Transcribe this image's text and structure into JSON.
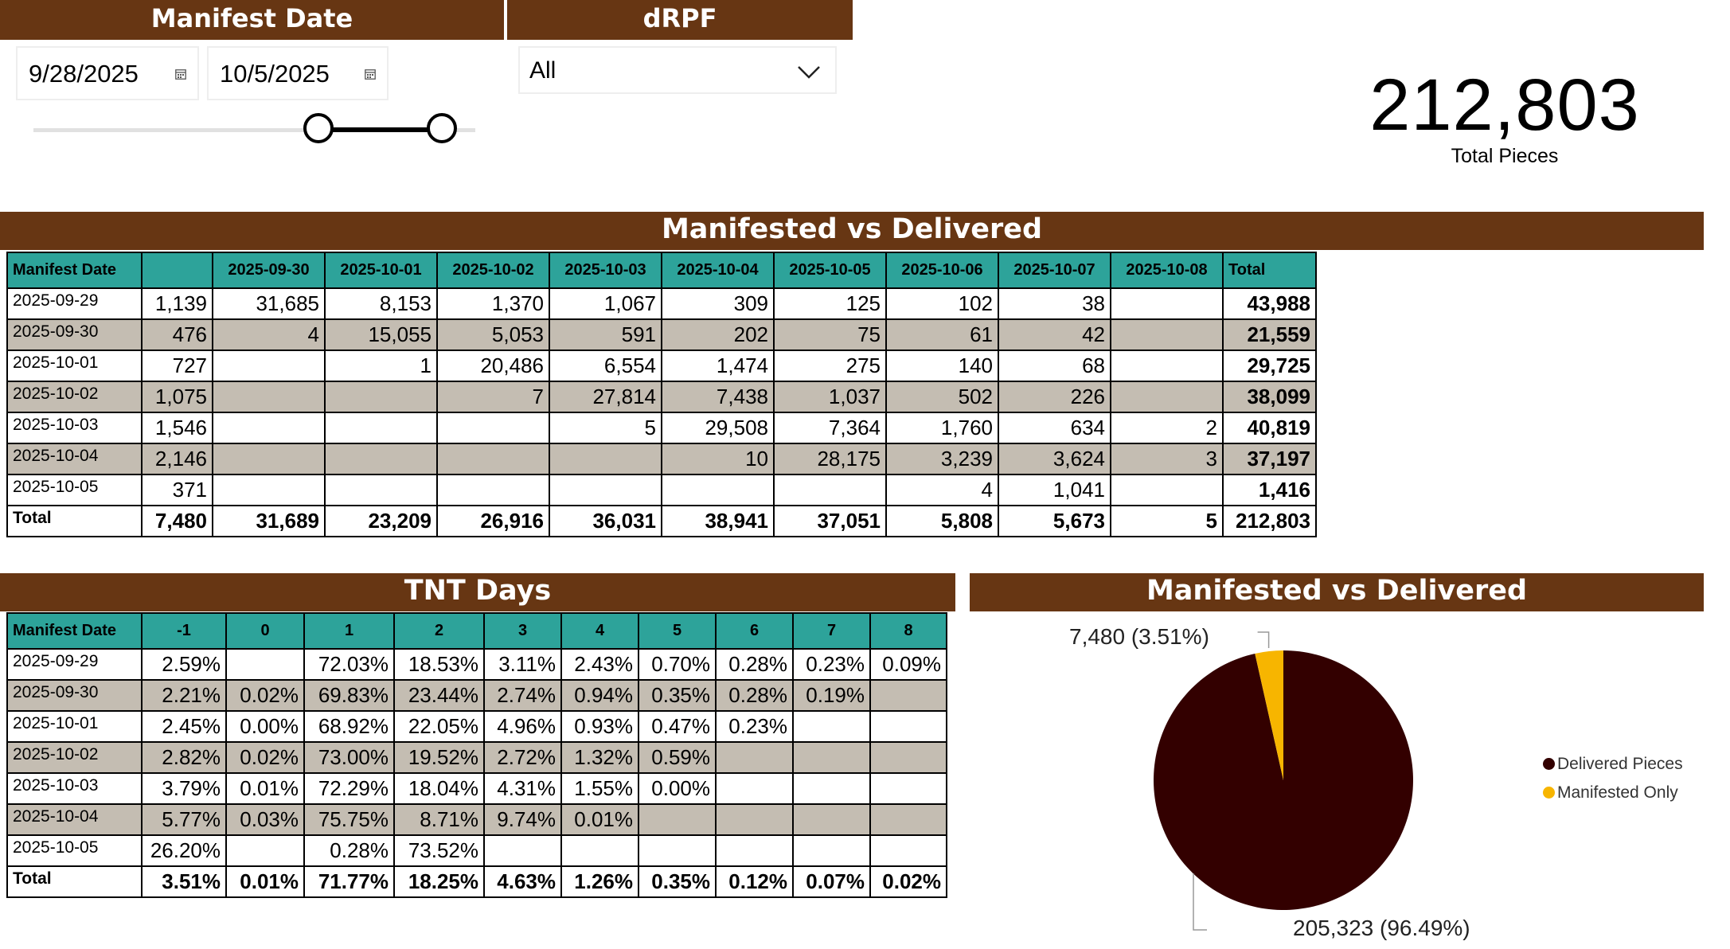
{
  "filters": {
    "manifest_date": {
      "title": "Manifest Date",
      "start": "9/28/2025",
      "end": "10/5/2025",
      "calendar_icon": "calendar-icon"
    },
    "drpf": {
      "title": "dRPF",
      "selected": "All",
      "chevron_icon": "chevron-down-icon"
    }
  },
  "kpi": {
    "value": "212,803",
    "label": "Total Pieces"
  },
  "matrix": {
    "title": "Manifested vs Delivered",
    "headers": [
      "Manifest Date",
      "",
      "2025-09-30",
      "2025-10-01",
      "2025-10-02",
      "2025-10-03",
      "2025-10-04",
      "2025-10-05",
      "2025-10-06",
      "2025-10-07",
      "2025-10-08",
      "Total"
    ],
    "rows": [
      [
        "2025-09-29",
        "1,139",
        "31,685",
        "8,153",
        "1,370",
        "1,067",
        "309",
        "125",
        "102",
        "38",
        "",
        "43,988"
      ],
      [
        "2025-09-30",
        "476",
        "4",
        "15,055",
        "5,053",
        "591",
        "202",
        "75",
        "61",
        "42",
        "",
        "21,559"
      ],
      [
        "2025-10-01",
        "727",
        "",
        "1",
        "20,486",
        "6,554",
        "1,474",
        "275",
        "140",
        "68",
        "",
        "29,725"
      ],
      [
        "2025-10-02",
        "1,075",
        "",
        "",
        "7",
        "27,814",
        "7,438",
        "1,037",
        "502",
        "226",
        "",
        "38,099"
      ],
      [
        "2025-10-03",
        "1,546",
        "",
        "",
        "",
        "5",
        "29,508",
        "7,364",
        "1,760",
        "634",
        "2",
        "40,819"
      ],
      [
        "2025-10-04",
        "2,146",
        "",
        "",
        "",
        "",
        "10",
        "28,175",
        "3,239",
        "3,624",
        "3",
        "37,197"
      ],
      [
        "2025-10-05",
        "371",
        "",
        "",
        "",
        "",
        "",
        "",
        "4",
        "1,041",
        "",
        "1,416"
      ],
      [
        "Total",
        "7,480",
        "31,689",
        "23,209",
        "26,916",
        "36,031",
        "38,941",
        "37,051",
        "5,808",
        "5,673",
        "5",
        "212,803"
      ]
    ]
  },
  "tnt": {
    "title": "TNT Days",
    "headers": [
      "Manifest Date",
      "-1",
      "0",
      "1",
      "2",
      "3",
      "4",
      "5",
      "6",
      "7",
      "8"
    ],
    "rows": [
      [
        "2025-09-29",
        "2.59%",
        "",
        "72.03%",
        "18.53%",
        "3.11%",
        "2.43%",
        "0.70%",
        "0.28%",
        "0.23%",
        "0.09%"
      ],
      [
        "2025-09-30",
        "2.21%",
        "0.02%",
        "69.83%",
        "23.44%",
        "2.74%",
        "0.94%",
        "0.35%",
        "0.28%",
        "0.19%",
        ""
      ],
      [
        "2025-10-01",
        "2.45%",
        "0.00%",
        "68.92%",
        "22.05%",
        "4.96%",
        "0.93%",
        "0.47%",
        "0.23%",
        "",
        ""
      ],
      [
        "2025-10-02",
        "2.82%",
        "0.02%",
        "73.00%",
        "19.52%",
        "2.72%",
        "1.32%",
        "0.59%",
        "",
        "",
        ""
      ],
      [
        "2025-10-03",
        "3.79%",
        "0.01%",
        "72.29%",
        "18.04%",
        "4.31%",
        "1.55%",
        "0.00%",
        "",
        "",
        ""
      ],
      [
        "2025-10-04",
        "5.77%",
        "0.03%",
        "75.75%",
        "8.71%",
        "9.74%",
        "0.01%",
        "",
        "",
        "",
        ""
      ],
      [
        "2025-10-05",
        "26.20%",
        "",
        "0.28%",
        "73.52%",
        "",
        "",
        "",
        "",
        "",
        ""
      ],
      [
        "Total",
        "3.51%",
        "0.01%",
        "71.77%",
        "18.25%",
        "4.63%",
        "1.26%",
        "0.35%",
        "0.12%",
        "0.07%",
        "0.02%"
      ]
    ]
  },
  "pie": {
    "title": "Manifested vs Delivered",
    "chart_data": {
      "type": "pie",
      "labels": [
        "Delivered Pieces",
        "Manifested Only"
      ],
      "values": [
        205323,
        7480
      ],
      "percent": [
        96.49,
        3.51
      ],
      "colors": [
        "#330000",
        "#f7b500"
      ],
      "data_labels": [
        "205,323 (96.49%)",
        "7,480 (3.51%)"
      ],
      "legend_position": "right"
    },
    "legend": [
      {
        "label": "Delivered Pieces",
        "color": "#330000"
      },
      {
        "label": "Manifested Only",
        "color": "#f7b500"
      }
    ]
  }
}
